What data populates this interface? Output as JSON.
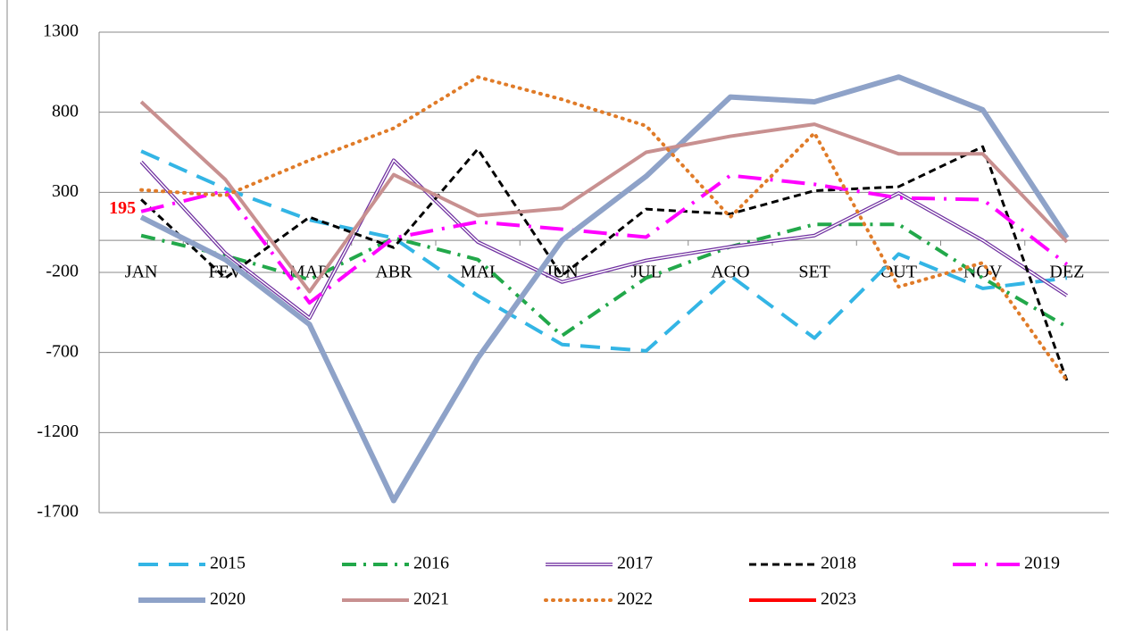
{
  "chart_data": {
    "type": "line",
    "categories": [
      "JAN",
      "FEV",
      "MAR",
      "ABR",
      "MAI",
      "JUN",
      "JUL",
      "AGO",
      "SET",
      "OUT",
      "NOV",
      "DEZ"
    ],
    "ylim": [
      -1700,
      1300
    ],
    "yticks": [
      -1700,
      -1200,
      -700,
      -200,
      300,
      800,
      1300
    ],
    "grid": true,
    "series": [
      {
        "name": "2015",
        "color": "#33b5e5",
        "style": "dash",
        "values": [
          557,
          323,
          128,
          15,
          -345,
          -650,
          -690,
          -220,
          -610,
          -85,
          -300,
          -235
        ]
      },
      {
        "name": "2016",
        "color": "#22a84a",
        "style": "dashdot",
        "values": [
          30,
          -95,
          -245,
          15,
          -120,
          -595,
          -235,
          -40,
          100,
          100,
          -235,
          -540
        ]
      },
      {
        "name": "2017",
        "color": "#7030a0",
        "style": "double",
        "values": [
          490,
          -80,
          -485,
          500,
          -10,
          -260,
          -125,
          -40,
          30,
          295,
          0,
          -345
        ]
      },
      {
        "name": "2018",
        "color": "#000000",
        "style": "shortdash",
        "values": [
          255,
          -235,
          145,
          -45,
          570,
          -220,
          195,
          165,
          310,
          335,
          585,
          -875
        ]
      },
      {
        "name": "2019",
        "color": "#ff00ff",
        "style": "longdashdot",
        "values": [
          180,
          310,
          -390,
          15,
          115,
          70,
          20,
          405,
          350,
          265,
          255,
          -150
        ]
      },
      {
        "name": "2020",
        "color": "#8ea2c8",
        "style": "thick",
        "values": [
          145,
          -120,
          -525,
          -1625,
          -735,
          0,
          400,
          895,
          865,
          1020,
          815,
          15
        ]
      },
      {
        "name": "2021",
        "color": "#c89090",
        "style": "solid",
        "values": [
          865,
          380,
          -320,
          410,
          155,
          200,
          550,
          650,
          725,
          540,
          540,
          -10
        ]
      },
      {
        "name": "2022",
        "color": "#e07b28",
        "style": "dot",
        "values": [
          315,
          280,
          500,
          700,
          1020,
          880,
          715,
          145,
          670,
          -290,
          -140,
          -875
        ]
      },
      {
        "name": "2023",
        "color": "#ff0000",
        "style": "solid",
        "data_labels": true,
        "values": [
          195,
          null,
          null,
          null,
          null,
          null,
          null,
          null,
          null,
          null,
          null,
          null
        ]
      }
    ]
  }
}
